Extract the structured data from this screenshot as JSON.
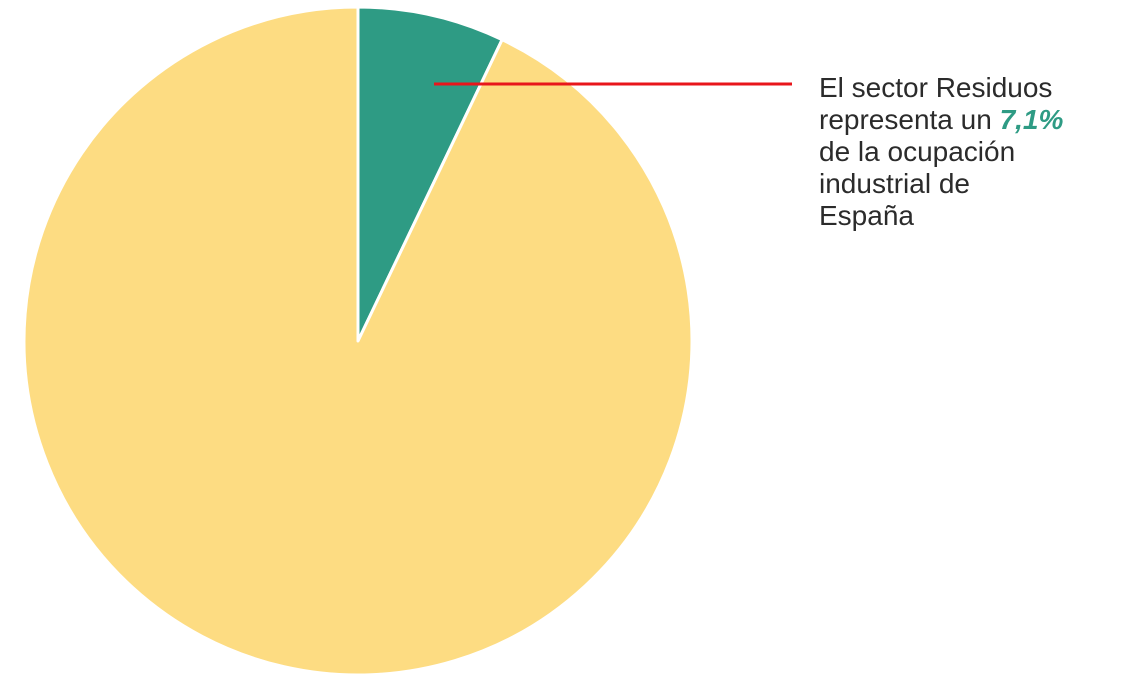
{
  "chart_data": {
    "type": "pie",
    "title": "",
    "slices": [
      {
        "label": "Residuos",
        "value": 7.1,
        "color": "#2e9b84"
      },
      {
        "label": "",
        "value": 92.9,
        "color": "#fddc82"
      }
    ],
    "annotation": {
      "before": "El sector Residuos representa un",
      "highlight": "7,1%",
      "after": "de la ocupación industrial de España",
      "pointer_color": "#e8161b"
    }
  }
}
